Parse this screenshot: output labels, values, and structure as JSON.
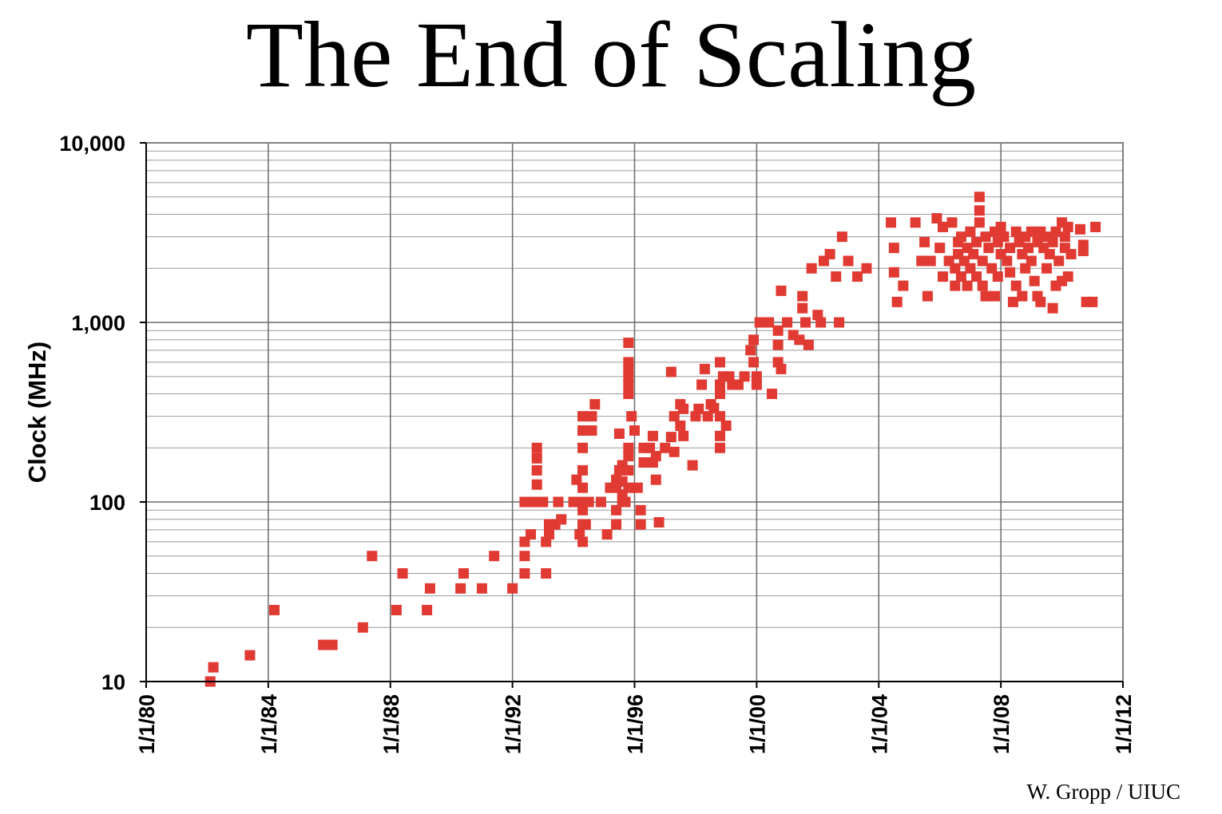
{
  "slide": {
    "title": "The End of Scaling",
    "credit": "W. Gropp / UIUC"
  },
  "chart_data": {
    "type": "scatter",
    "ylabel": "Clock (MHz)",
    "yscale": "log",
    "ylim": [
      10,
      10000
    ],
    "yticks": [
      10,
      100,
      1000,
      10000
    ],
    "ytick_labels": [
      "10",
      "100",
      "1,000",
      "10,000"
    ],
    "xlim": [
      1980,
      2012
    ],
    "xticks": [
      1980,
      1984,
      1988,
      1992,
      1996,
      2000,
      2004,
      2008,
      2012
    ],
    "xtick_labels": [
      "1/1/80",
      "1/1/84",
      "1/1/88",
      "1/1/92",
      "1/1/96",
      "1/1/00",
      "1/1/04",
      "1/1/08",
      "1/1/12"
    ],
    "grid": true,
    "marker_color": "#e03a33",
    "points": [
      [
        1982.1,
        10
      ],
      [
        1982.2,
        12
      ],
      [
        1983.4,
        14
      ],
      [
        1984.2,
        25
      ],
      [
        1985.8,
        16
      ],
      [
        1986.1,
        16
      ],
      [
        1987.1,
        20
      ],
      [
        1987.4,
        50
      ],
      [
        1988.2,
        25
      ],
      [
        1988.4,
        40
      ],
      [
        1989.2,
        25
      ],
      [
        1989.3,
        33
      ],
      [
        1990.3,
        33
      ],
      [
        1990.4,
        40
      ],
      [
        1991.0,
        33
      ],
      [
        1991.4,
        50
      ],
      [
        1992.0,
        33
      ],
      [
        1992.4,
        40
      ],
      [
        1992.4,
        50
      ],
      [
        1992.4,
        60
      ],
      [
        1992.4,
        100
      ],
      [
        1992.6,
        100
      ],
      [
        1992.6,
        66
      ],
      [
        1992.8,
        100
      ],
      [
        1992.8,
        125
      ],
      [
        1992.8,
        150
      ],
      [
        1992.8,
        175
      ],
      [
        1992.8,
        200
      ],
      [
        1993.0,
        100
      ],
      [
        1993.1,
        40
      ],
      [
        1993.1,
        60
      ],
      [
        1993.2,
        66
      ],
      [
        1993.2,
        75
      ],
      [
        1993.4,
        75
      ],
      [
        1993.5,
        100
      ],
      [
        1993.6,
        80
      ],
      [
        1994.0,
        100
      ],
      [
        1994.1,
        133
      ],
      [
        1994.2,
        66
      ],
      [
        1994.3,
        60
      ],
      [
        1994.3,
        75
      ],
      [
        1994.3,
        90
      ],
      [
        1994.3,
        100
      ],
      [
        1994.3,
        120
      ],
      [
        1994.3,
        150
      ],
      [
        1994.3,
        200
      ],
      [
        1994.3,
        250
      ],
      [
        1994.3,
        300
      ],
      [
        1994.4,
        75
      ],
      [
        1994.5,
        100
      ],
      [
        1994.6,
        250
      ],
      [
        1994.6,
        300
      ],
      [
        1994.7,
        350
      ],
      [
        1994.9,
        100
      ],
      [
        1995.1,
        66
      ],
      [
        1995.2,
        120
      ],
      [
        1995.4,
        75
      ],
      [
        1995.4,
        90
      ],
      [
        1995.4,
        120
      ],
      [
        1995.4,
        133
      ],
      [
        1995.5,
        150
      ],
      [
        1995.5,
        240
      ],
      [
        1995.6,
        100
      ],
      [
        1995.6,
        110
      ],
      [
        1995.6,
        130
      ],
      [
        1995.6,
        160
      ],
      [
        1995.7,
        100
      ],
      [
        1995.8,
        120
      ],
      [
        1995.8,
        150
      ],
      [
        1995.8,
        180
      ],
      [
        1995.8,
        200
      ],
      [
        1995.8,
        400
      ],
      [
        1995.8,
        450
      ],
      [
        1995.8,
        500
      ],
      [
        1995.8,
        550
      ],
      [
        1995.8,
        600
      ],
      [
        1995.8,
        770
      ],
      [
        1995.9,
        300
      ],
      [
        1996.0,
        250
      ],
      [
        1996.1,
        120
      ],
      [
        1996.2,
        90
      ],
      [
        1996.2,
        75
      ],
      [
        1996.3,
        166
      ],
      [
        1996.3,
        200
      ],
      [
        1996.5,
        200
      ],
      [
        1996.6,
        233
      ],
      [
        1996.6,
        166
      ],
      [
        1996.7,
        133
      ],
      [
        1996.7,
        180
      ],
      [
        1996.8,
        77
      ],
      [
        1997.0,
        200
      ],
      [
        1997.2,
        530
      ],
      [
        1997.2,
        230
      ],
      [
        1997.3,
        300
      ],
      [
        1997.3,
        190
      ],
      [
        1997.5,
        266
      ],
      [
        1997.5,
        350
      ],
      [
        1997.6,
        330
      ],
      [
        1997.6,
        233
      ],
      [
        1997.9,
        160
      ],
      [
        1998.0,
        300
      ],
      [
        1998.1,
        330
      ],
      [
        1998.2,
        450
      ],
      [
        1998.3,
        550
      ],
      [
        1998.4,
        300
      ],
      [
        1998.5,
        350
      ],
      [
        1998.6,
        333
      ],
      [
        1998.8,
        300
      ],
      [
        1998.8,
        400
      ],
      [
        1998.8,
        450
      ],
      [
        1998.8,
        600
      ],
      [
        1998.8,
        200
      ],
      [
        1998.8,
        233
      ],
      [
        1998.9,
        500
      ],
      [
        1999.0,
        266
      ],
      [
        1999.1,
        500
      ],
      [
        1999.2,
        450
      ],
      [
        1999.4,
        450
      ],
      [
        1999.6,
        500
      ],
      [
        1999.8,
        700
      ],
      [
        1999.9,
        800
      ],
      [
        1999.9,
        600
      ],
      [
        2000.0,
        450
      ],
      [
        2000.0,
        500
      ],
      [
        2000.1,
        1000
      ],
      [
        2000.4,
        1000
      ],
      [
        2000.5,
        400
      ],
      [
        2000.7,
        750
      ],
      [
        2000.7,
        900
      ],
      [
        2000.7,
        600
      ],
      [
        2000.8,
        550
      ],
      [
        2000.8,
        1500
      ],
      [
        2001.0,
        1000
      ],
      [
        2001.2,
        850
      ],
      [
        2001.4,
        800
      ],
      [
        2001.5,
        1200
      ],
      [
        2001.5,
        1400
      ],
      [
        2001.6,
        1000
      ],
      [
        2001.7,
        750
      ],
      [
        2001.8,
        2000
      ],
      [
        2002.0,
        1100
      ],
      [
        2002.1,
        1000
      ],
      [
        2002.2,
        2200
      ],
      [
        2002.4,
        2400
      ],
      [
        2002.6,
        1800
      ],
      [
        2002.7,
        1000
      ],
      [
        2002.8,
        3000
      ],
      [
        2003.0,
        2200
      ],
      [
        2003.3,
        1800
      ],
      [
        2003.6,
        2000
      ],
      [
        2004.4,
        3600
      ],
      [
        2004.5,
        2600
      ],
      [
        2004.5,
        1900
      ],
      [
        2004.6,
        1300
      ],
      [
        2004.8,
        1600
      ],
      [
        2005.2,
        3600
      ],
      [
        2005.4,
        2200
      ],
      [
        2005.5,
        2800
      ],
      [
        2005.6,
        1400
      ],
      [
        2005.7,
        2200
      ],
      [
        2005.9,
        3800
      ],
      [
        2006.0,
        2600
      ],
      [
        2006.1,
        3400
      ],
      [
        2006.1,
        1800
      ],
      [
        2006.3,
        2200
      ],
      [
        2006.4,
        3600
      ],
      [
        2006.5,
        1600
      ],
      [
        2006.5,
        2000
      ],
      [
        2006.6,
        2400
      ],
      [
        2006.6,
        2800
      ],
      [
        2006.7,
        3000
      ],
      [
        2006.7,
        1800
      ],
      [
        2006.8,
        2200
      ],
      [
        2006.9,
        2600
      ],
      [
        2006.9,
        1600
      ],
      [
        2007.0,
        3200
      ],
      [
        2007.0,
        2000
      ],
      [
        2007.1,
        2400
      ],
      [
        2007.2,
        2800
      ],
      [
        2007.2,
        1800
      ],
      [
        2007.3,
        5000
      ],
      [
        2007.3,
        4200
      ],
      [
        2007.3,
        3600
      ],
      [
        2007.4,
        2200
      ],
      [
        2007.4,
        1600
      ],
      [
        2007.5,
        3000
      ],
      [
        2007.5,
        1400
      ],
      [
        2007.6,
        2600
      ],
      [
        2007.7,
        2000
      ],
      [
        2007.8,
        3200
      ],
      [
        2007.8,
        1400
      ],
      [
        2007.9,
        2800
      ],
      [
        2007.9,
        1800
      ],
      [
        2008.0,
        2400
      ],
      [
        2008.0,
        3400
      ],
      [
        2008.1,
        3000
      ],
      [
        2008.2,
        2200
      ],
      [
        2008.3,
        2600
      ],
      [
        2008.3,
        1900
      ],
      [
        2008.4,
        1300
      ],
      [
        2008.5,
        3200
      ],
      [
        2008.5,
        1600
      ],
      [
        2008.6,
        2800
      ],
      [
        2008.7,
        2400
      ],
      [
        2008.7,
        1400
      ],
      [
        2008.8,
        3000
      ],
      [
        2008.8,
        2000
      ],
      [
        2008.9,
        2600
      ],
      [
        2009.0,
        3200
      ],
      [
        2009.0,
        2200
      ],
      [
        2009.1,
        1700
      ],
      [
        2009.2,
        2800
      ],
      [
        2009.2,
        1400
      ],
      [
        2009.3,
        3200
      ],
      [
        2009.3,
        1300
      ],
      [
        2009.4,
        2600
      ],
      [
        2009.5,
        3000
      ],
      [
        2009.5,
        2000
      ],
      [
        2009.6,
        2400
      ],
      [
        2009.7,
        1200
      ],
      [
        2009.7,
        2800
      ],
      [
        2009.8,
        1600
      ],
      [
        2009.8,
        3200
      ],
      [
        2009.9,
        2200
      ],
      [
        2010.0,
        3600
      ],
      [
        2010.0,
        1700
      ],
      [
        2010.1,
        2600
      ],
      [
        2010.1,
        3000
      ],
      [
        2010.2,
        1800
      ],
      [
        2010.2,
        3400
      ],
      [
        2010.3,
        2400
      ],
      [
        2010.6,
        3300
      ],
      [
        2010.7,
        2500
      ],
      [
        2010.7,
        2700
      ],
      [
        2010.8,
        1300
      ],
      [
        2011.0,
        1300
      ],
      [
        2011.1,
        3400
      ]
    ]
  }
}
